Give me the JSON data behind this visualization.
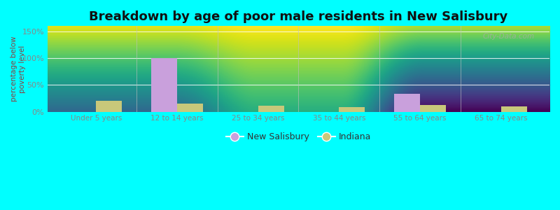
{
  "title": "Breakdown by age of poor male residents in New Salisbury",
  "categories": [
    "Under 5 years",
    "12 to 14 years",
    "25 to 34 years",
    "35 to 44 years",
    "55 to 64 years",
    "65 to 74 years"
  ],
  "new_salisbury": [
    0,
    100,
    0,
    0,
    33,
    0
  ],
  "indiana": [
    20,
    15,
    11,
    8,
    12,
    10
  ],
  "new_salisbury_color": "#c9a0dc",
  "indiana_color": "#c8c87a",
  "title_fontsize": 13,
  "ylabel": "percentage below\npoverty level",
  "ylabel_color": "#8b4040",
  "ylim": [
    0,
    160
  ],
  "yticks": [
    0,
    50,
    100,
    150
  ],
  "ytick_labels": [
    "0%",
    "50%",
    "100%",
    "150%"
  ],
  "background_color": "#00ffff",
  "plot_bg_top_color": "#f5f8ef",
  "plot_bg_bottom_color": "#c8ddb0",
  "bar_width": 0.32,
  "watermark": "City-Data.com",
  "grid_color": "#e0e8d0",
  "tick_label_color": "#888888",
  "separator_color": "#c0c0c0"
}
